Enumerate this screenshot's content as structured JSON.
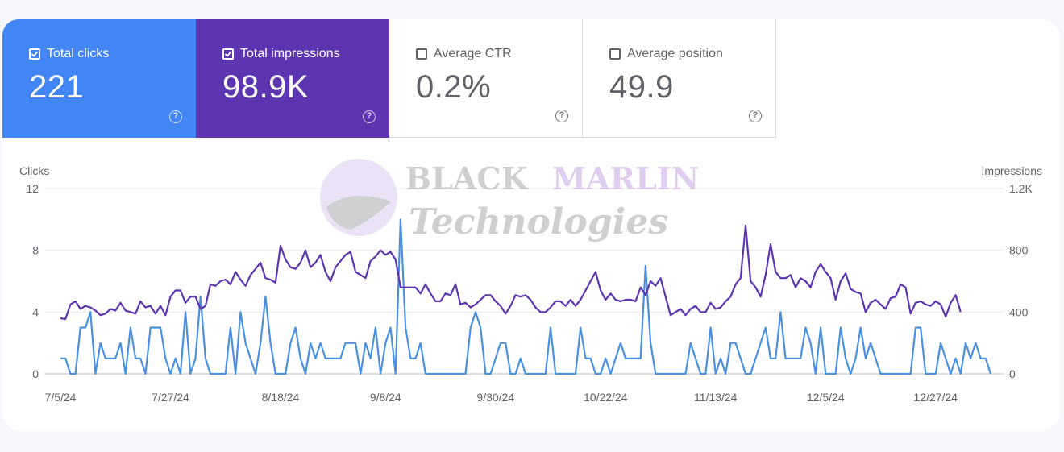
{
  "metrics": [
    {
      "label": "Total clicks",
      "value": "221",
      "checked": true,
      "color": "#4285f4"
    },
    {
      "label": "Total impressions",
      "value": "98.9K",
      "checked": true,
      "color": "#5e35b1"
    },
    {
      "label": "Average CTR",
      "value": "0.2%",
      "checked": false,
      "color": "#ffffff"
    },
    {
      "label": "Average position",
      "value": "49.9",
      "checked": false,
      "color": "#ffffff"
    }
  ],
  "watermark": {
    "line1a": "BLACK",
    "line1b": "MARLIN",
    "line2": "Technologies"
  },
  "chart_data": {
    "type": "line",
    "left_axis_title": "Clicks",
    "right_axis_title": "Impressions",
    "left_ticks": [
      "0",
      "4",
      "8",
      "12"
    ],
    "right_ticks": [
      "0",
      "400",
      "800",
      "1.2K"
    ],
    "left_range": [
      0,
      12
    ],
    "right_range": [
      0,
      1200
    ],
    "x_tick_labels": [
      "7/5/24",
      "7/27/24",
      "8/18/24",
      "9/8/24",
      "9/30/24",
      "10/22/24",
      "11/13/24",
      "12/5/24",
      "12/27/24"
    ],
    "x_tick_indices": [
      0,
      22,
      44,
      65,
      87,
      109,
      131,
      153,
      175
    ],
    "grid": true,
    "series": [
      {
        "name": "Clicks",
        "axis": "left",
        "color": "#4a90e2",
        "values": [
          1,
          1,
          0,
          0,
          3,
          3,
          4,
          0,
          2,
          1,
          1,
          1,
          2,
          0,
          3,
          1,
          1,
          0,
          3,
          3,
          3,
          1,
          0,
          1,
          0,
          4,
          0,
          1,
          5,
          1,
          0,
          0,
          0,
          0,
          3,
          0,
          4,
          2,
          1,
          0,
          2,
          5,
          2,
          0,
          0,
          0,
          2,
          3,
          1,
          0,
          2,
          1,
          2,
          1,
          1,
          1,
          1,
          2,
          2,
          2,
          0,
          2,
          1,
          3,
          0,
          2,
          3,
          0,
          10,
          3,
          1,
          1,
          2,
          0,
          0,
          0,
          0,
          0,
          0,
          0,
          0,
          0,
          3,
          4,
          3,
          0,
          0,
          1,
          2,
          2,
          0,
          0,
          1,
          0,
          0,
          0,
          0,
          0,
          3,
          0,
          0,
          0,
          0,
          0,
          3,
          1,
          1,
          0,
          0,
          1,
          0,
          1,
          2,
          1,
          1,
          1,
          1,
          7,
          2,
          0,
          0,
          0,
          0,
          0,
          0,
          0,
          2,
          1,
          0,
          0,
          3,
          0,
          1,
          0,
          2,
          2,
          1,
          0,
          0,
          1,
          2,
          3,
          1,
          1,
          4,
          1,
          1,
          1,
          1,
          3,
          2,
          0,
          3,
          0,
          0,
          0,
          3,
          1,
          0,
          1,
          3,
          1,
          2,
          1,
          0,
          0,
          0,
          0,
          0,
          0,
          0,
          3,
          3,
          0,
          0,
          0,
          2,
          1,
          0,
          1,
          0,
          2,
          1,
          2,
          1,
          1,
          0
        ]
      },
      {
        "name": "Impressions",
        "axis": "right",
        "color": "#5e35b1",
        "values": [
          360,
          355,
          450,
          470,
          420,
          440,
          430,
          410,
          380,
          390,
          420,
          410,
          460,
          410,
          400,
          390,
          470,
          430,
          440,
          390,
          440,
          380,
          500,
          540,
          540,
          460,
          500,
          500,
          420,
          440,
          580,
          570,
          600,
          610,
          580,
          660,
          610,
          570,
          640,
          680,
          720,
          620,
          610,
          590,
          830,
          740,
          690,
          680,
          720,
          800,
          690,
          720,
          770,
          660,
          600,
          690,
          730,
          770,
          790,
          660,
          640,
          620,
          730,
          760,
          800,
          770,
          790,
          740,
          560,
          560,
          560,
          560,
          520,
          580,
          520,
          470,
          470,
          520,
          510,
          580,
          450,
          460,
          430,
          450,
          480,
          510,
          510,
          470,
          440,
          390,
          440,
          510,
          500,
          510,
          480,
          430,
          400,
          400,
          430,
          470,
          470,
          440,
          480,
          440,
          480,
          540,
          600,
          660,
          540,
          480,
          520,
          480,
          470,
          480,
          480,
          470,
          560,
          510,
          600,
          570,
          620,
          500,
          380,
          400,
          420,
          380,
          420,
          440,
          400,
          400,
          460,
          420,
          430,
          470,
          500,
          580,
          620,
          960,
          600,
          560,
          500,
          640,
          840,
          660,
          620,
          620,
          640,
          560,
          620,
          600,
          560,
          660,
          710,
          660,
          620,
          480,
          600,
          650,
          550,
          530,
          520,
          400,
          460,
          480,
          450,
          420,
          490,
          500,
          580,
          560,
          390,
          460,
          470,
          450,
          440,
          470,
          450,
          370,
          460,
          510,
          400
        ]
      }
    ]
  }
}
